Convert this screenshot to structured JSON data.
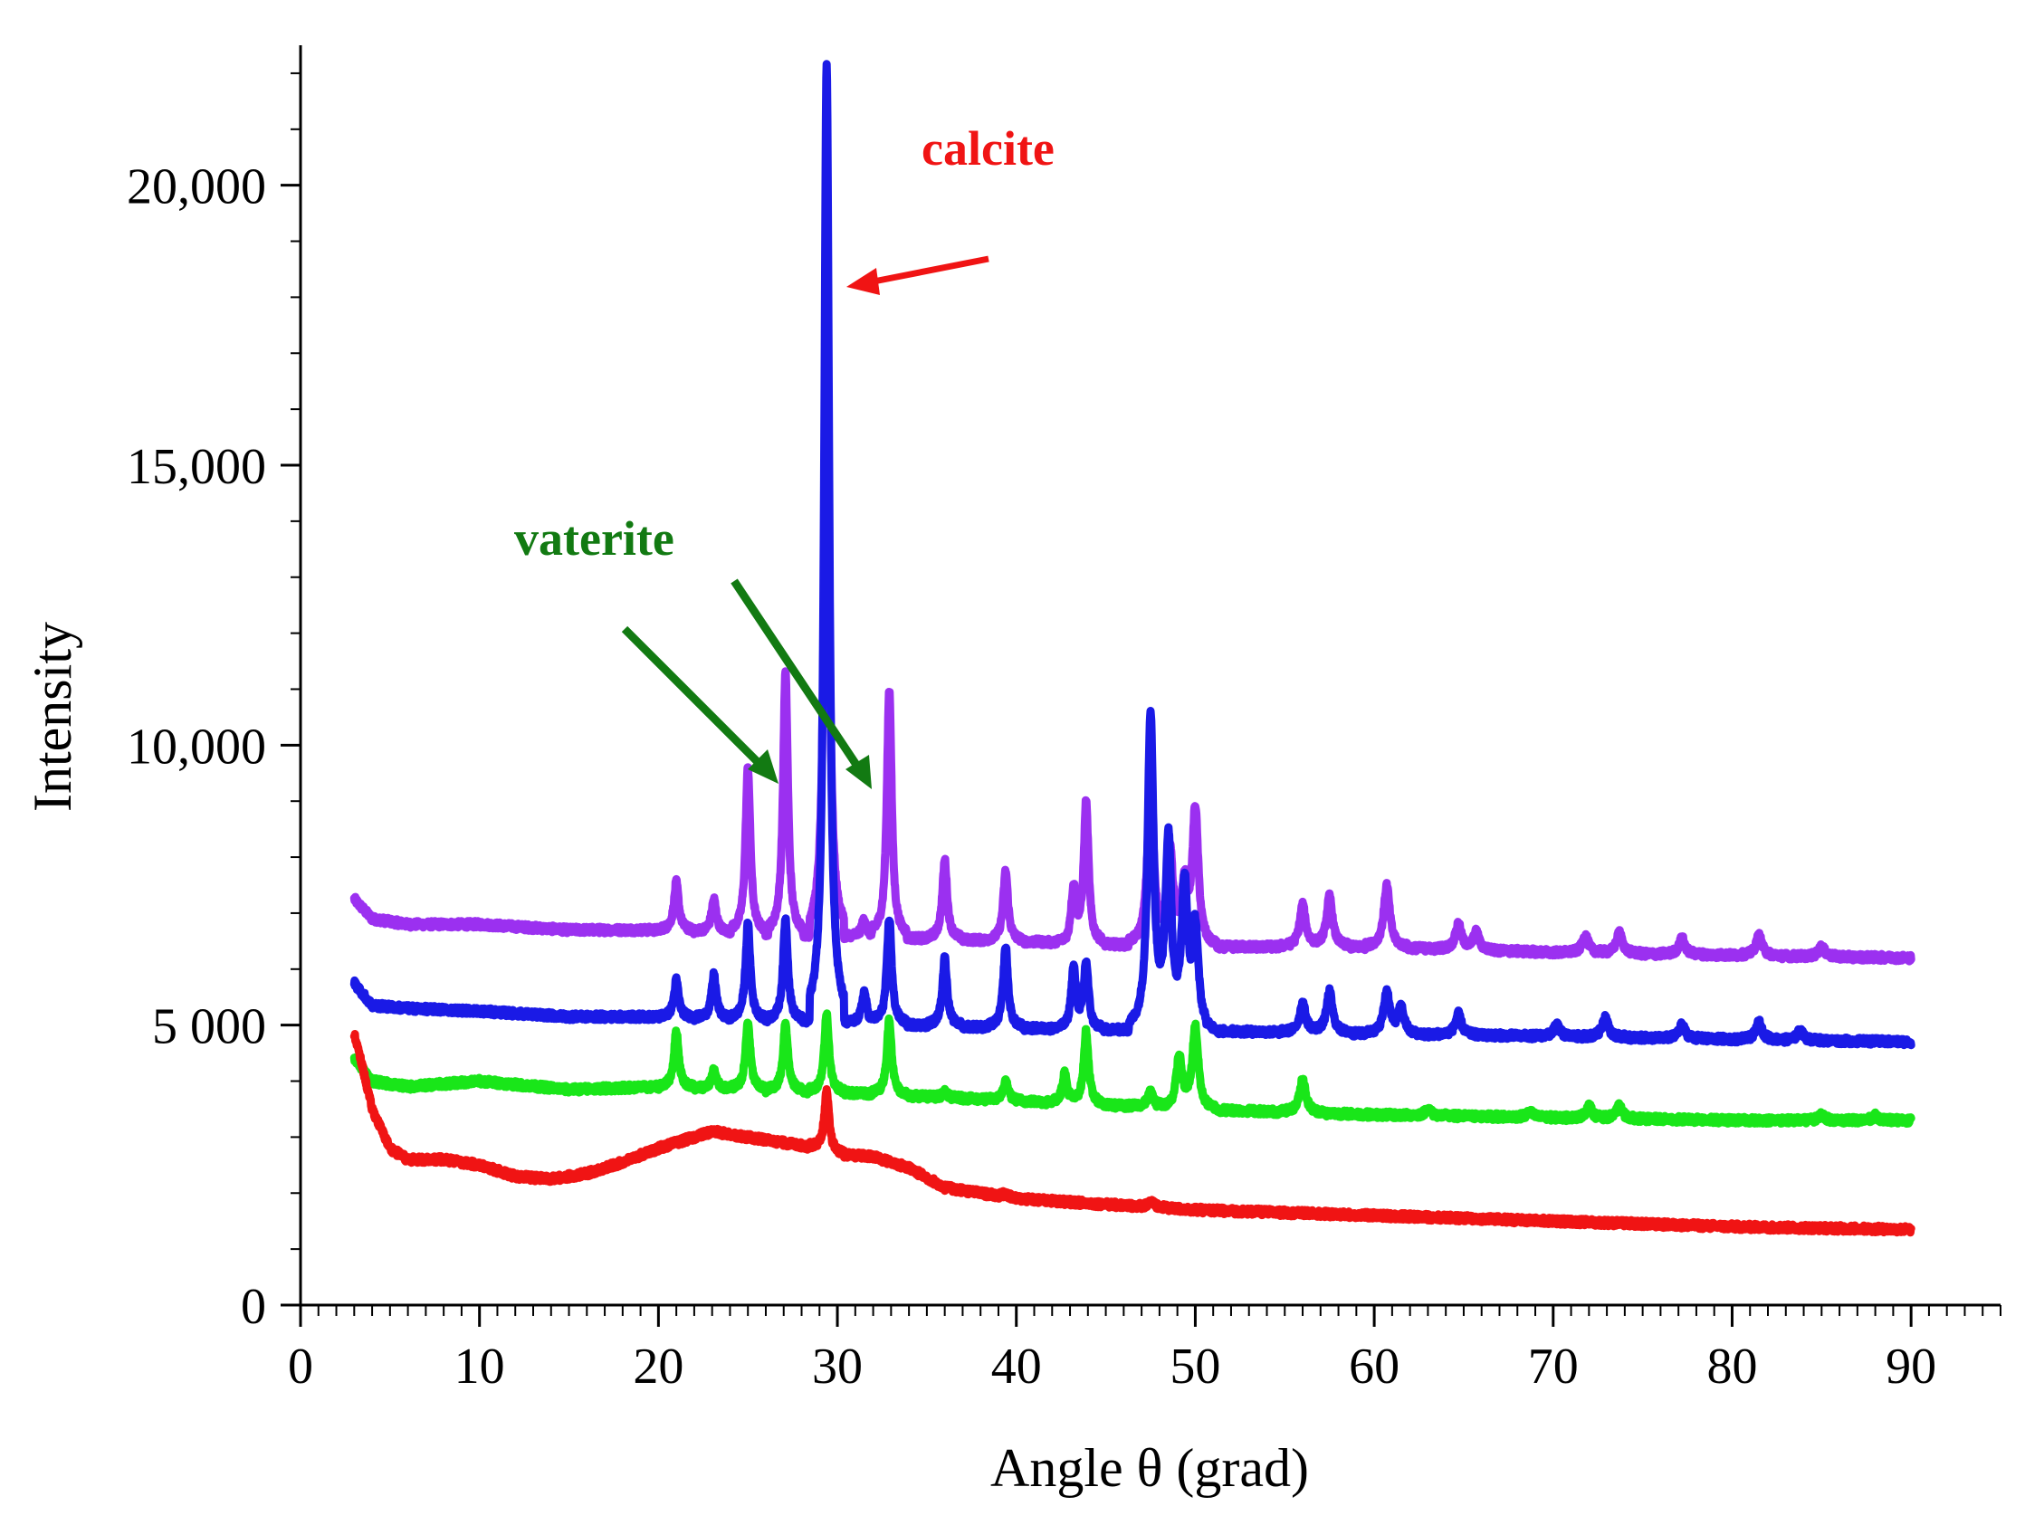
{
  "chart_data": {
    "type": "line",
    "title": "",
    "xlabel": "Angle θ (grad)",
    "ylabel": "Intensity",
    "xlim": [
      0,
      95
    ],
    "ylim": [
      0,
      22500
    ],
    "x_ticks": [
      0,
      10,
      20,
      30,
      40,
      50,
      60,
      70,
      80,
      90
    ],
    "x_tick_labels": [
      "0",
      "10",
      "20",
      "30",
      "40",
      "50",
      "60",
      "70",
      "80",
      "90"
    ],
    "y_ticks": [
      0,
      5000,
      10000,
      15000,
      20000
    ],
    "y_tick_labels": [
      "0",
      "5 000",
      "10,000",
      "15,000",
      "20,000"
    ],
    "grid": false,
    "series": [
      {
        "name": "purple",
        "color": "#9b30f0",
        "baseline": [
          [
            3,
            7250
          ],
          [
            4,
            6900
          ],
          [
            6,
            6800
          ],
          [
            10,
            6800
          ],
          [
            15,
            6700
          ],
          [
            20,
            6700
          ],
          [
            30,
            6600
          ],
          [
            40,
            6500
          ],
          [
            50,
            6400
          ],
          [
            60,
            6400
          ],
          [
            70,
            6300
          ],
          [
            80,
            6250
          ],
          [
            90,
            6200
          ]
        ],
        "peaks": [
          [
            21,
            7550
          ],
          [
            23.1,
            7250
          ],
          [
            25,
            9600
          ],
          [
            27.1,
            11300
          ],
          [
            29.4,
            18400
          ],
          [
            31.5,
            6900
          ],
          [
            32.9,
            11000
          ],
          [
            36,
            7950
          ],
          [
            39.4,
            7750
          ],
          [
            43.2,
            7400
          ],
          [
            43.9,
            8950
          ],
          [
            47.5,
            9400
          ],
          [
            48.6,
            8100
          ],
          [
            49.4,
            7400
          ],
          [
            50,
            8850
          ],
          [
            56,
            7150
          ],
          [
            57.5,
            7300
          ],
          [
            60.7,
            7500
          ],
          [
            64.7,
            6800
          ],
          [
            65.7,
            6650
          ],
          [
            71.8,
            6600
          ],
          [
            73.7,
            6650
          ],
          [
            77.2,
            6550
          ],
          [
            81.5,
            6600
          ],
          [
            85,
            6400
          ]
        ]
      },
      {
        "name": "blue",
        "color": "#1a1ae6",
        "baseline": [
          [
            3,
            5750
          ],
          [
            4,
            5350
          ],
          [
            6,
            5300
          ],
          [
            10,
            5250
          ],
          [
            15,
            5150
          ],
          [
            20,
            5150
          ],
          [
            30,
            5050
          ],
          [
            40,
            4950
          ],
          [
            50,
            4900
          ],
          [
            60,
            4850
          ],
          [
            70,
            4800
          ],
          [
            80,
            4750
          ],
          [
            90,
            4700
          ]
        ],
        "peaks": [
          [
            21,
            5800
          ],
          [
            23.1,
            5900
          ],
          [
            25,
            6800
          ],
          [
            27.1,
            6900
          ],
          [
            29.4,
            22200
          ],
          [
            31.5,
            5600
          ],
          [
            32.9,
            6900
          ],
          [
            36,
            6200
          ],
          [
            39.4,
            6400
          ],
          [
            43.2,
            6000
          ],
          [
            43.9,
            6100
          ],
          [
            47.5,
            10500
          ],
          [
            48.5,
            8200
          ],
          [
            49.4,
            7400
          ],
          [
            50,
            6700
          ],
          [
            56,
            5400
          ],
          [
            57.5,
            5600
          ],
          [
            60.7,
            5600
          ],
          [
            61.5,
            5300
          ],
          [
            64.7,
            5200
          ],
          [
            70.2,
            5000
          ],
          [
            72.9,
            5150
          ],
          [
            77.2,
            5000
          ],
          [
            81.5,
            5050
          ],
          [
            83.8,
            4900
          ]
        ]
      },
      {
        "name": "green",
        "color": "#19e619",
        "baseline": [
          [
            3,
            4400
          ],
          [
            4,
            4000
          ],
          [
            6,
            3900
          ],
          [
            10,
            4000
          ],
          [
            15,
            3850
          ],
          [
            20,
            3900
          ],
          [
            30,
            3800
          ],
          [
            40,
            3650
          ],
          [
            50,
            3500
          ],
          [
            60,
            3400
          ],
          [
            70,
            3350
          ],
          [
            80,
            3300
          ],
          [
            90,
            3300
          ]
        ],
        "peaks": [
          [
            21,
            4900
          ],
          [
            23.1,
            4200
          ],
          [
            25,
            5050
          ],
          [
            27.1,
            5050
          ],
          [
            29.4,
            5200
          ],
          [
            32.9,
            5100
          ],
          [
            36,
            3800
          ],
          [
            39.4,
            4000
          ],
          [
            42.7,
            4150
          ],
          [
            43.9,
            4900
          ],
          [
            47.5,
            3800
          ],
          [
            49.1,
            4400
          ],
          [
            50,
            4950
          ],
          [
            56,
            4050
          ],
          [
            63,
            3500
          ],
          [
            68.7,
            3450
          ],
          [
            72,
            3550
          ],
          [
            73.7,
            3550
          ],
          [
            85,
            3400
          ],
          [
            88,
            3380
          ]
        ]
      },
      {
        "name": "red",
        "color": "#f01414",
        "baseline": [
          [
            3,
            4850
          ],
          [
            3.5,
            4200
          ],
          [
            4,
            3500
          ],
          [
            5,
            2800
          ],
          [
            6,
            2600
          ],
          [
            8,
            2600
          ],
          [
            10,
            2500
          ],
          [
            12,
            2300
          ],
          [
            14,
            2250
          ],
          [
            16,
            2350
          ],
          [
            18,
            2550
          ],
          [
            20,
            2800
          ],
          [
            22,
            3000
          ],
          [
            23,
            3100
          ],
          [
            25,
            3000
          ],
          [
            27,
            2900
          ],
          [
            29,
            2800
          ],
          [
            30,
            2700
          ],
          [
            32,
            2650
          ],
          [
            34,
            2450
          ],
          [
            36,
            2100
          ],
          [
            40,
            1900
          ],
          [
            45,
            1800
          ],
          [
            50,
            1700
          ],
          [
            60,
            1600
          ],
          [
            70,
            1500
          ],
          [
            80,
            1400
          ],
          [
            90,
            1350
          ]
        ],
        "peaks": [
          [
            29.4,
            3800
          ],
          [
            39.4,
            2000
          ],
          [
            47.5,
            1850
          ]
        ]
      }
    ],
    "annotations": [
      {
        "text": "calcite",
        "color": "#f01414",
        "points_to_x": 29.4
      },
      {
        "text": "vaterite",
        "color": "#127a12",
        "points_to_x": [
          27.1,
          32.9
        ]
      }
    ]
  }
}
